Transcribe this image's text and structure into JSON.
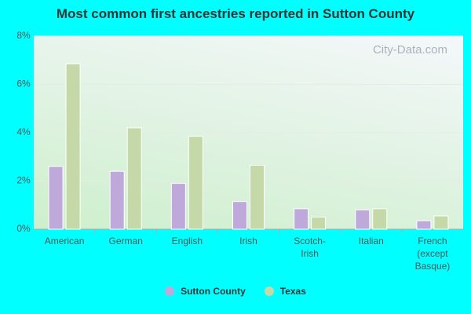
{
  "chart_data": {
    "type": "bar",
    "title": "Most common first ancestries reported in Sutton County",
    "watermark": "City-Data.com",
    "categories": [
      "American",
      "German",
      "English",
      "Irish",
      "Scotch-Irish",
      "Italian",
      "French (except Basque)"
    ],
    "series": [
      {
        "name": "Sutton County",
        "color": "#bfa9db",
        "values": [
          2.6,
          2.4,
          1.9,
          1.15,
          0.85,
          0.8,
          0.35
        ]
      },
      {
        "name": "Texas",
        "color": "#c5d9a8",
        "values": [
          6.85,
          4.2,
          3.85,
          2.65,
          0.5,
          0.85,
          0.55
        ]
      }
    ],
    "ylim": [
      0,
      8
    ],
    "yticks": [
      {
        "value": 0,
        "label": "0%"
      },
      {
        "value": 2,
        "label": "2%"
      },
      {
        "value": 4,
        "label": "4%"
      },
      {
        "value": 6,
        "label": "6%"
      },
      {
        "value": 8,
        "label": "8%"
      }
    ],
    "grid": true,
    "legend": "bottom"
  }
}
